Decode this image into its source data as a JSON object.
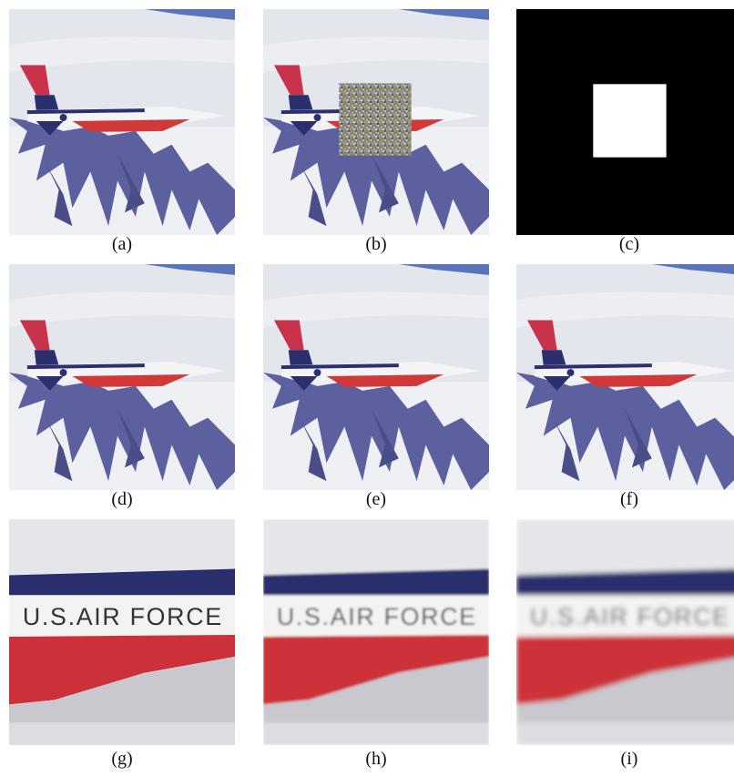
{
  "panels": [
    {
      "caption": "(a)"
    },
    {
      "caption": "(b)"
    },
    {
      "caption": "(c)"
    },
    {
      "caption": "(d)"
    },
    {
      "caption": "(e)"
    },
    {
      "caption": "(f)"
    },
    {
      "caption": "(g)",
      "text": "U.S.AIR FORCE"
    },
    {
      "caption": "(h)",
      "text": "U.S.AIR FORCE"
    },
    {
      "caption": "(i)",
      "text": "U.S.AIR FORCE"
    }
  ]
}
